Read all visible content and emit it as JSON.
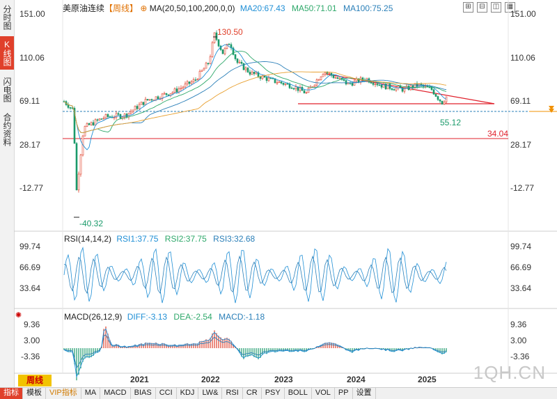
{
  "sidebar": {
    "tabs": [
      {
        "label": "分时图",
        "active": false
      },
      {
        "label": "K线图",
        "active": true
      },
      {
        "label": "闪电图",
        "active": false
      },
      {
        "label": "合约资料",
        "active": false
      }
    ]
  },
  "header": {
    "instrument": "美原油连续",
    "period_tag": "【周线】",
    "ma_label": "MA(20,50,100,200,0,0)",
    "ma20": "MA20:67.43",
    "ma50": "MA50:71.01",
    "ma100": "MA100:75.25",
    "colors": {
      "ma20": "#1f8fd6",
      "ma50": "#2ea86a",
      "ma100": "#2a7fb8",
      "up": "#e0402b",
      "down": "#1a9a6a"
    }
  },
  "window_buttons": [
    "⊞",
    "⊟",
    "◫",
    "▦"
  ],
  "main_axis": {
    "ticks": [
      "151.00",
      "110.06",
      "69.11",
      "28.17",
      "-12.77"
    ],
    "annotations": {
      "high": "130.50",
      "low": "-40.32",
      "last_low": "55.12",
      "support": "34.04"
    }
  },
  "rsi": {
    "label": "RSI(14,14,2)",
    "rsi1": "RSI1:37.75",
    "rsi2": "RSI2:37.75",
    "rsi3": "RSI3:32.68",
    "ticks": [
      "99.74",
      "66.69",
      "33.64"
    ]
  },
  "macd": {
    "label": "MACD(26,12,9)",
    "diff": "DIFF:-3.13",
    "dea": "DEA:-2.54",
    "macd": "MACD:-1.18",
    "ticks": [
      "9.36",
      "3.00",
      "-3.36"
    ]
  },
  "x_axis": {
    "years": [
      "2021",
      "2022",
      "2023",
      "2024",
      "2025"
    ]
  },
  "period_button": "周线",
  "bottom_tabs": [
    "指标",
    "模板",
    "VIP指标",
    "MA",
    "MACD",
    "BIAS",
    "CCI",
    "KDJ",
    "LW&",
    "RSI",
    "CR",
    "PSY",
    "BOLL",
    "VOL",
    "PP",
    "设置"
  ],
  "active_bottom_tab": "指标",
  "watermark": "1QH.CN"
}
